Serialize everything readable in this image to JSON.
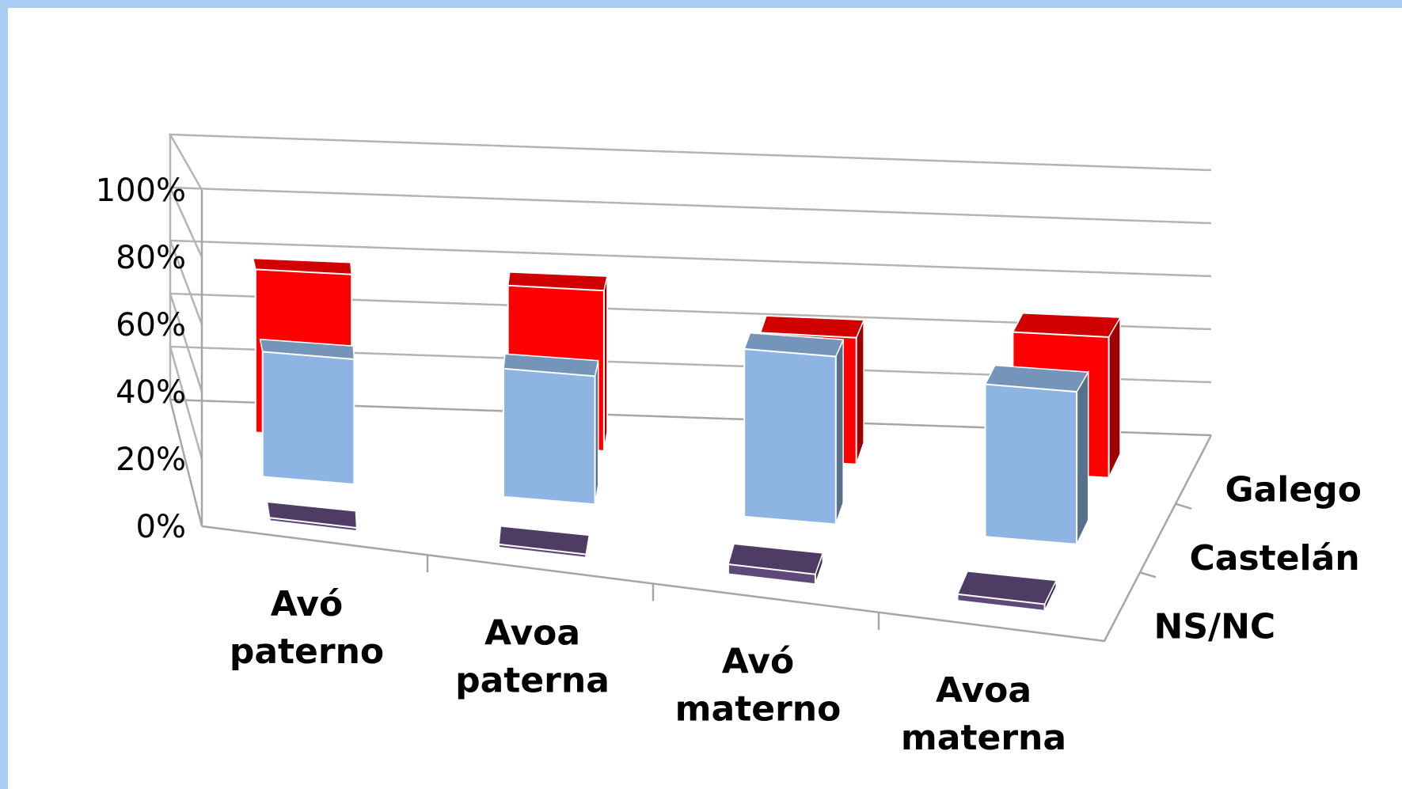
{
  "chart_data": {
    "type": "bar",
    "subtype": "3d-column",
    "categories": [
      [
        "Avó",
        "paterno"
      ],
      [
        "Avoa",
        "paterna"
      ],
      [
        "Avó",
        "materno"
      ],
      [
        "Avoa",
        "materna"
      ]
    ],
    "series": [
      {
        "name": "Galego",
        "values": [
          58,
          57,
          45,
          50
        ],
        "color": "#ff0000"
      },
      {
        "name": "Castelán",
        "values": [
          41,
          42,
          55,
          50
        ],
        "color": "#8db4e2"
      },
      {
        "name": "NS/NC",
        "values": [
          1,
          1,
          3,
          2
        ],
        "color": "#5f497a"
      }
    ],
    "y_ticks": [
      "0%",
      "20%",
      "40%",
      "60%",
      "80%",
      "100%"
    ],
    "ylim": [
      0,
      100
    ],
    "grid": true,
    "title": "",
    "xlabel": "",
    "ylabel": ""
  }
}
